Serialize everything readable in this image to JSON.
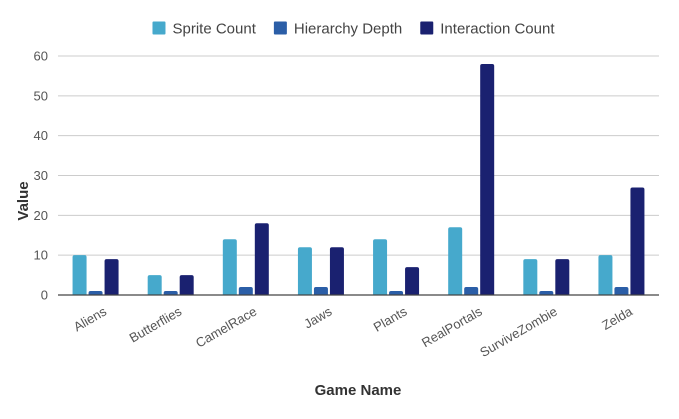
{
  "chart_data": {
    "type": "bar",
    "title": "",
    "xlabel": "Game Name",
    "ylabel": "Value",
    "ylim": [
      0,
      60
    ],
    "yticks": [
      0,
      10,
      20,
      30,
      40,
      50,
      60
    ],
    "grid": true,
    "legend_position": "top",
    "categories": [
      "Aliens",
      "Butterflies",
      "CamelRace",
      "Jaws",
      "Plants",
      "RealPortals",
      "SurviveZombie",
      "Zelda"
    ],
    "series": [
      {
        "name": "Sprite Count",
        "color": "#46a9cc",
        "values": [
          10,
          5,
          14,
          12,
          14,
          17,
          9,
          10
        ]
      },
      {
        "name": "Hierarchy Depth",
        "color": "#2b5ea7",
        "values": [
          1,
          1,
          2,
          2,
          1,
          2,
          1,
          2
        ]
      },
      {
        "name": "Interaction Count",
        "color": "#1a2170",
        "values": [
          9,
          5,
          18,
          12,
          7,
          58,
          9,
          27
        ]
      }
    ]
  }
}
